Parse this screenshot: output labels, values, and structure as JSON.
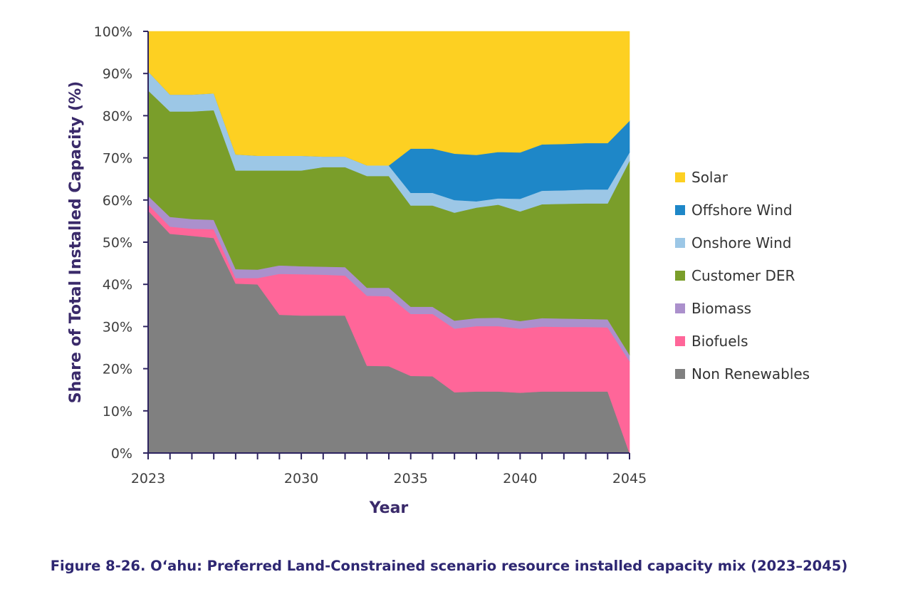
{
  "chart_data": {
    "type": "area",
    "stacked": true,
    "title": "",
    "xlabel": "Year",
    "ylabel": "Share of Total Installed Capacity (%)",
    "x": [
      2023,
      2024,
      2025,
      2026,
      2027,
      2028,
      2029,
      2030,
      2031,
      2032,
      2033,
      2034,
      2035,
      2036,
      2037,
      2038,
      2039,
      2040,
      2041,
      2042,
      2043,
      2044,
      2045
    ],
    "x_ticks": [
      "2023",
      "2030",
      "2035",
      "2040",
      "2045"
    ],
    "x_tick_values": [
      2023,
      2030,
      2035,
      2040,
      2045
    ],
    "y_ticks": [
      "0%",
      "10%",
      "20%",
      "30%",
      "40%",
      "50%",
      "60%",
      "70%",
      "80%",
      "90%",
      "100%"
    ],
    "y_tick_values": [
      0,
      10,
      20,
      30,
      40,
      50,
      60,
      70,
      80,
      90,
      100
    ],
    "ylim": [
      0,
      100
    ],
    "xlim": [
      2023,
      2045
    ],
    "legend_position": "right",
    "series": [
      {
        "name": "Non Renewables",
        "color": "#808080",
        "values": [
          57.5,
          52,
          51.5,
          51,
          40.2,
          40,
          32.8,
          32.6,
          32.6,
          32.6,
          20.7,
          20.6,
          18.3,
          18.2,
          14.4,
          14.6,
          14.6,
          14.3,
          14.6,
          14.6,
          14.6,
          14.6,
          0
        ]
      },
      {
        "name": "Biofuels",
        "color": "#ff6699",
        "values": [
          1.5,
          1.7,
          1.7,
          2.1,
          1.3,
          1.5,
          9.7,
          9.8,
          9.7,
          9.5,
          16.6,
          16.6,
          14.7,
          14.8,
          15.1,
          15.5,
          15.5,
          15.2,
          15.4,
          15.3,
          15.3,
          15.2,
          21.8
        ]
      },
      {
        "name": "Biomass",
        "color": "#ab90cc",
        "values": [
          2,
          2.3,
          2.3,
          2.2,
          2.1,
          2,
          2,
          1.9,
          1.9,
          2,
          1.9,
          2,
          1.7,
          1.7,
          1.9,
          1.9,
          2,
          1.8,
          2,
          2,
          1.9,
          1.9,
          1.5
        ]
      },
      {
        "name": "Customer DER",
        "color": "#7a9e2a",
        "values": [
          25,
          25,
          25.5,
          26,
          23.4,
          23.5,
          22.5,
          22.7,
          23.6,
          23.7,
          26.5,
          26.5,
          24,
          24,
          25.6,
          26.2,
          26.8,
          26,
          27,
          27.2,
          27.4,
          27.5,
          46
        ]
      },
      {
        "name": "Onshore Wind",
        "color": "#9cc7e6",
        "values": [
          4.5,
          4,
          4,
          4,
          3.8,
          3.5,
          3.5,
          3.5,
          2.5,
          2.5,
          2.5,
          2.5,
          3,
          3,
          3,
          1.5,
          1.5,
          3,
          3.2,
          3.2,
          3.3,
          3.3,
          2
        ]
      },
      {
        "name": "Offshore Wind",
        "color": "#1e87c8",
        "values": [
          0,
          0,
          0,
          0,
          0,
          0,
          0,
          0,
          0,
          0,
          0,
          0,
          10.5,
          10.5,
          11,
          11,
          11,
          11,
          11,
          11,
          11,
          11,
          7.5
        ]
      },
      {
        "name": "Solar",
        "color": "#fdd022",
        "values": [
          9.5,
          15,
          15,
          14.7,
          29.2,
          29.5,
          29.5,
          29.5,
          29.7,
          29.7,
          31.8,
          31.8,
          27.8,
          27.8,
          29,
          29.3,
          28.6,
          28.7,
          26.8,
          26.7,
          26.5,
          26.5,
          21.2
        ]
      }
    ],
    "legend_order": [
      "Solar",
      "Offshore Wind",
      "Onshore Wind",
      "Customer DER",
      "Biomass",
      "Biofuels",
      "Non Renewables"
    ]
  },
  "caption": "Figure 8-26. O‘ahu: Preferred Land-Constrained scenario resource installed capacity mix (2023–2045)",
  "colors": {
    "axis": "#2e2460",
    "caption": "#2e2772"
  }
}
